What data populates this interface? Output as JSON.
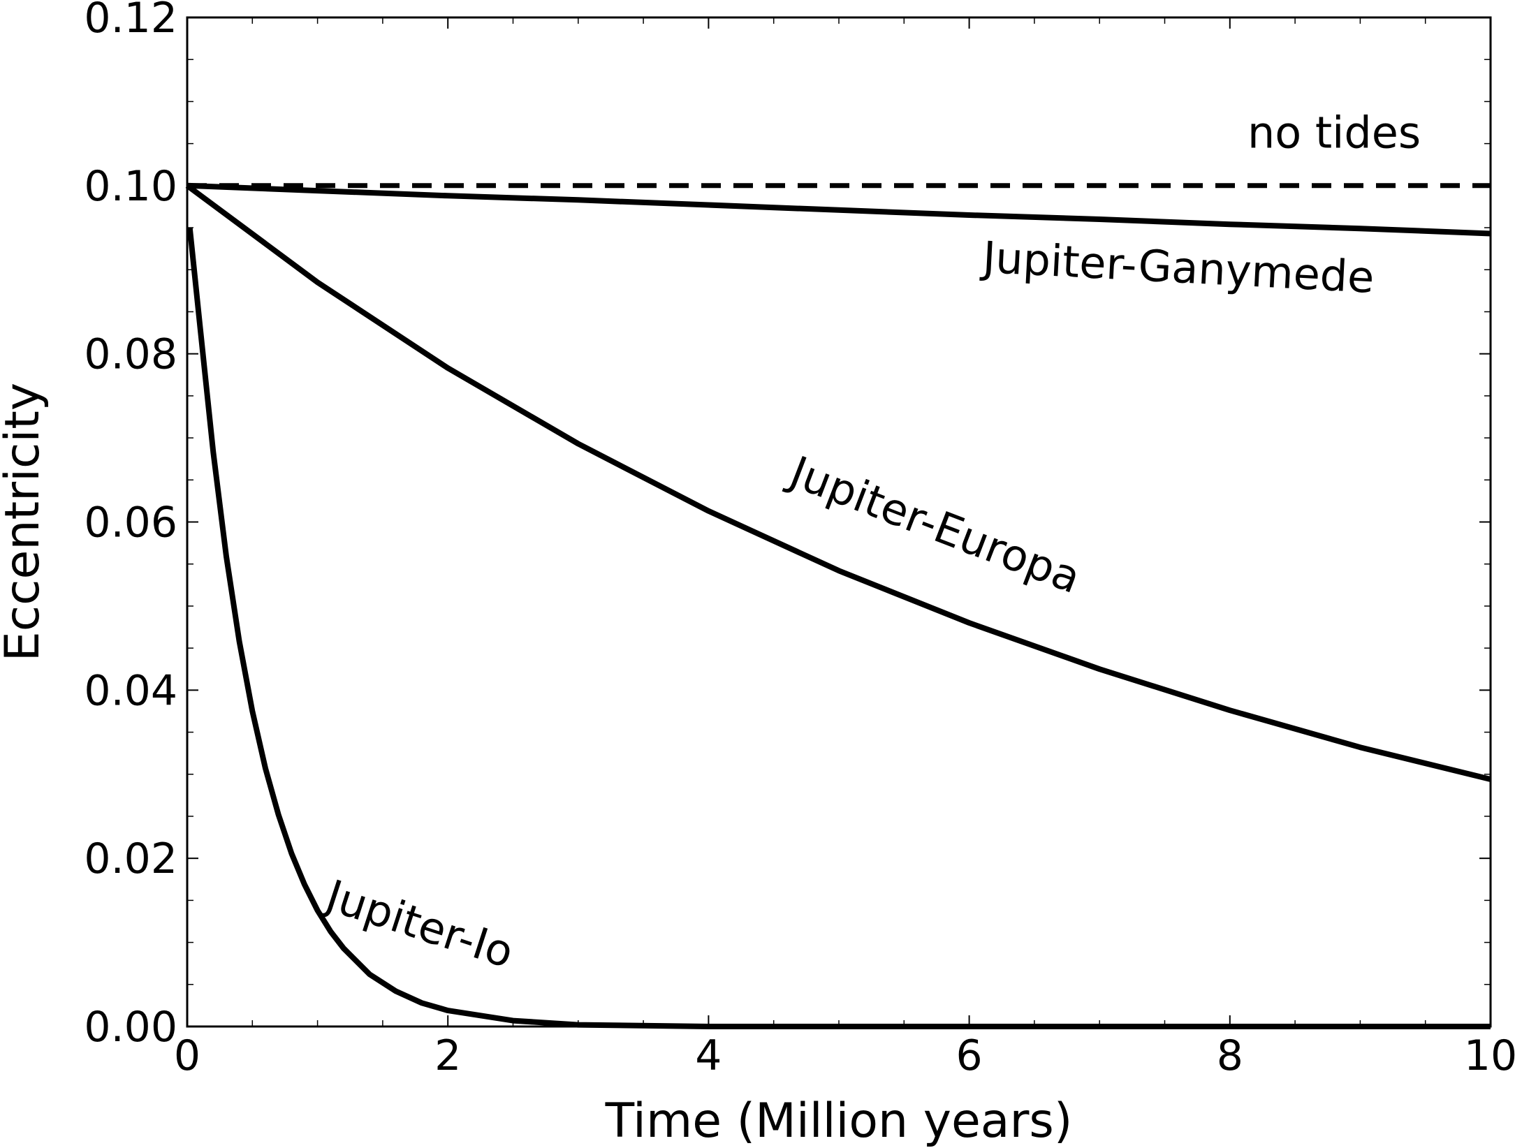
{
  "chart_data": {
    "type": "line",
    "xlabel": "Time  (Million years)",
    "ylabel": "Eccentricity",
    "xlim": [
      0,
      10
    ],
    "ylim": [
      0,
      0.12
    ],
    "xticks": [
      "0",
      "2",
      "4",
      "6",
      "8",
      "10"
    ],
    "yticks": [
      "0.00",
      "0.02",
      "0.04",
      "0.06",
      "0.08",
      "0.10",
      "0.12"
    ],
    "grid": false,
    "series": [
      {
        "name": "no tides",
        "style": "dashed",
        "color": "#000000",
        "x": [
          0,
          2,
          4,
          6,
          8,
          10
        ],
        "y": [
          0.1,
          0.1,
          0.1,
          0.1,
          0.1,
          0.1
        ]
      },
      {
        "name": "Jupiter-Ganymede",
        "style": "solid",
        "color": "#000000",
        "x": [
          0,
          1,
          2,
          3,
          4,
          5,
          6,
          7,
          8,
          9,
          10
        ],
        "y": [
          0.1,
          0.0994,
          0.0988,
          0.0983,
          0.0977,
          0.0971,
          0.0965,
          0.096,
          0.0954,
          0.0949,
          0.0943
        ]
      },
      {
        "name": "Jupiter-Europa",
        "style": "solid",
        "color": "#000000",
        "x": [
          0,
          1,
          2,
          3,
          4,
          5,
          6,
          7,
          8,
          9,
          10
        ],
        "y": [
          0.1,
          0.0885,
          0.0783,
          0.0693,
          0.0613,
          0.0542,
          0.048,
          0.0425,
          0.0376,
          0.0332,
          0.0294
        ]
      },
      {
        "name": "Jupiter-Io",
        "style": "solid",
        "color": "#000000",
        "x": [
          0.02,
          0.1,
          0.2,
          0.3,
          0.4,
          0.5,
          0.6,
          0.7,
          0.8,
          0.9,
          1.0,
          1.1,
          1.2,
          1.4,
          1.6,
          1.8,
          2.0,
          2.5,
          3.0,
          4.0,
          6.0,
          8.0,
          10.0
        ],
        "y": [
          0.095,
          0.083,
          0.0683,
          0.0559,
          0.0458,
          0.0375,
          0.0307,
          0.0252,
          0.0206,
          0.0169,
          0.0138,
          0.0113,
          0.0093,
          0.0062,
          0.0042,
          0.0028,
          0.0019,
          0.0007,
          0.0002,
          0.0,
          0.0,
          0.0,
          0.0
        ]
      }
    ],
    "annotations": [
      {
        "text": "no tides",
        "x": 8.8,
        "y": 0.1045,
        "rotate": 0
      },
      {
        "text": "Jupiter-Ganymede",
        "x": 7.6,
        "y": 0.0885,
        "rotate": 3
      },
      {
        "text": "Jupiter-Europa",
        "x": 5.7,
        "y": 0.058,
        "rotate": 21
      },
      {
        "text": "Jupiter-Io",
        "x": 1.75,
        "y": 0.0105,
        "rotate": 18
      }
    ]
  }
}
